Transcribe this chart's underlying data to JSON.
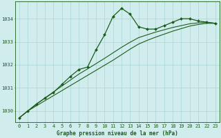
{
  "bg_color": "#d0ecec",
  "grid_color": "#aad4d4",
  "line_color": "#1a5c1a",
  "marker_color": "#1a5c1a",
  "xlabel": "Graphe pression niveau de la mer (hPa)",
  "xlim": [
    -0.5,
    23.5
  ],
  "ylim": [
    1029.5,
    1034.75
  ],
  "yticks": [
    1030,
    1031,
    1032,
    1033,
    1034
  ],
  "xticks": [
    0,
    1,
    2,
    3,
    4,
    5,
    6,
    7,
    8,
    9,
    10,
    11,
    12,
    13,
    14,
    15,
    16,
    17,
    18,
    19,
    20,
    21,
    22,
    23
  ],
  "series": [
    {
      "x": [
        0,
        1,
        2,
        3,
        4,
        5,
        6,
        7,
        8,
        9,
        10,
        11,
        12,
        13,
        14,
        15,
        16,
        17,
        18,
        19,
        20,
        21,
        22,
        23
      ],
      "y": [
        1029.7,
        1030.0,
        1030.3,
        1030.55,
        1030.8,
        1031.15,
        1031.5,
        1031.8,
        1031.9,
        1032.65,
        1033.3,
        1034.1,
        1034.45,
        1034.2,
        1033.65,
        1033.55,
        1033.55,
        1033.7,
        1033.85,
        1034.0,
        1034.0,
        1033.9,
        1033.85,
        1033.8
      ],
      "marker": "D",
      "markersize": 2.0,
      "linewidth": 0.9,
      "has_marker": true
    },
    {
      "x": [
        0,
        1,
        2,
        3,
        4,
        5,
        6,
        7,
        8,
        9,
        10,
        11,
        12,
        13,
        14,
        15,
        16,
        17,
        18,
        19,
        20,
        21,
        22,
        23
      ],
      "y": [
        1029.7,
        1030.0,
        1030.28,
        1030.56,
        1030.82,
        1031.08,
        1031.34,
        1031.6,
        1031.82,
        1032.05,
        1032.28,
        1032.52,
        1032.76,
        1032.98,
        1033.18,
        1033.3,
        1033.42,
        1033.52,
        1033.62,
        1033.7,
        1033.78,
        1033.82,
        1033.84,
        1033.8
      ],
      "marker": null,
      "markersize": 0,
      "linewidth": 0.8,
      "has_marker": false
    },
    {
      "x": [
        0,
        1,
        2,
        3,
        4,
        5,
        6,
        7,
        8,
        9,
        10,
        11,
        12,
        13,
        14,
        15,
        16,
        17,
        18,
        19,
        20,
        21,
        22,
        23
      ],
      "y": [
        1029.7,
        1030.0,
        1030.22,
        1030.44,
        1030.66,
        1030.88,
        1031.1,
        1031.32,
        1031.54,
        1031.76,
        1031.98,
        1032.2,
        1032.44,
        1032.68,
        1032.9,
        1033.06,
        1033.2,
        1033.33,
        1033.46,
        1033.57,
        1033.68,
        1033.75,
        1033.8,
        1033.8
      ],
      "marker": null,
      "markersize": 0,
      "linewidth": 0.8,
      "has_marker": false
    }
  ]
}
